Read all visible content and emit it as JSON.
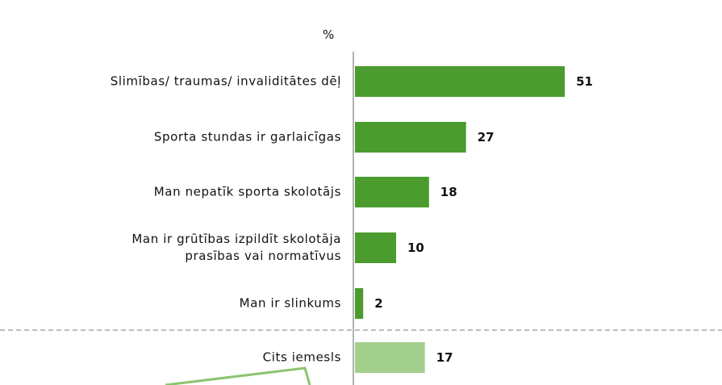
{
  "chart_data": {
    "type": "bar",
    "orientation": "horizontal",
    "unit_label": "%",
    "categories": [
      "Slimības/ traumas/ invaliditātes dēļ",
      "Sporta stundas ir garlaicīgas",
      "Man nepatīk sporta skolotājs",
      "Man ir grūtības izpildīt skolotāja\nprasības vai normatīvus",
      "Man ir slinkums",
      "Cits iemesls"
    ],
    "values": [
      51,
      27,
      18,
      10,
      2,
      17
    ],
    "colors": [
      "#4b9b2f",
      "#4b9b2f",
      "#4b9b2f",
      "#4b9b2f",
      "#4b9b2f",
      "#a4d08d"
    ]
  }
}
